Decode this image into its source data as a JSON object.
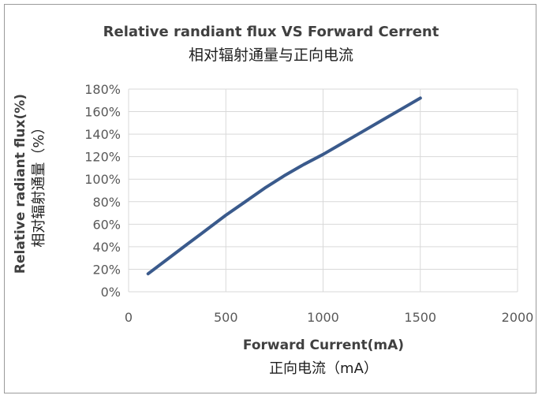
{
  "chart_data": {
    "type": "line",
    "title": "Relative randiant flux VS Forward Cerrent",
    "title_secondary": "相对辐射通量与正向电流",
    "xlabel": "Forward Current(mA)",
    "xlabel_secondary": "正向电流（mA）",
    "ylabel": "Relative radiant flux(%)",
    "ylabel_secondary": "相对辐射通量（%）",
    "xlim": [
      0,
      2000
    ],
    "ylim": [
      0,
      180
    ],
    "x_ticks": [
      "0",
      "500",
      "1000",
      "1500",
      "2000"
    ],
    "x_tick_values": [
      0,
      500,
      1000,
      1500,
      2000
    ],
    "y_ticks": [
      "0%",
      "20%",
      "40%",
      "60%",
      "80%",
      "100%",
      "120%",
      "140%",
      "160%",
      "180%"
    ],
    "y_tick_values": [
      0,
      20,
      40,
      60,
      80,
      100,
      120,
      140,
      160,
      180
    ],
    "grid": true,
    "legend": "none",
    "series": [
      {
        "color": "#3a5a8c",
        "x": [
          100,
          200,
          300,
          400,
          500,
          600,
          700,
          800,
          900,
          1000,
          1100,
          1200,
          1300,
          1400,
          1500
        ],
        "y": [
          16,
          29,
          42,
          55,
          68,
          80,
          92,
          103,
          113,
          122,
          132,
          142,
          152,
          162,
          172
        ]
      }
    ]
  }
}
